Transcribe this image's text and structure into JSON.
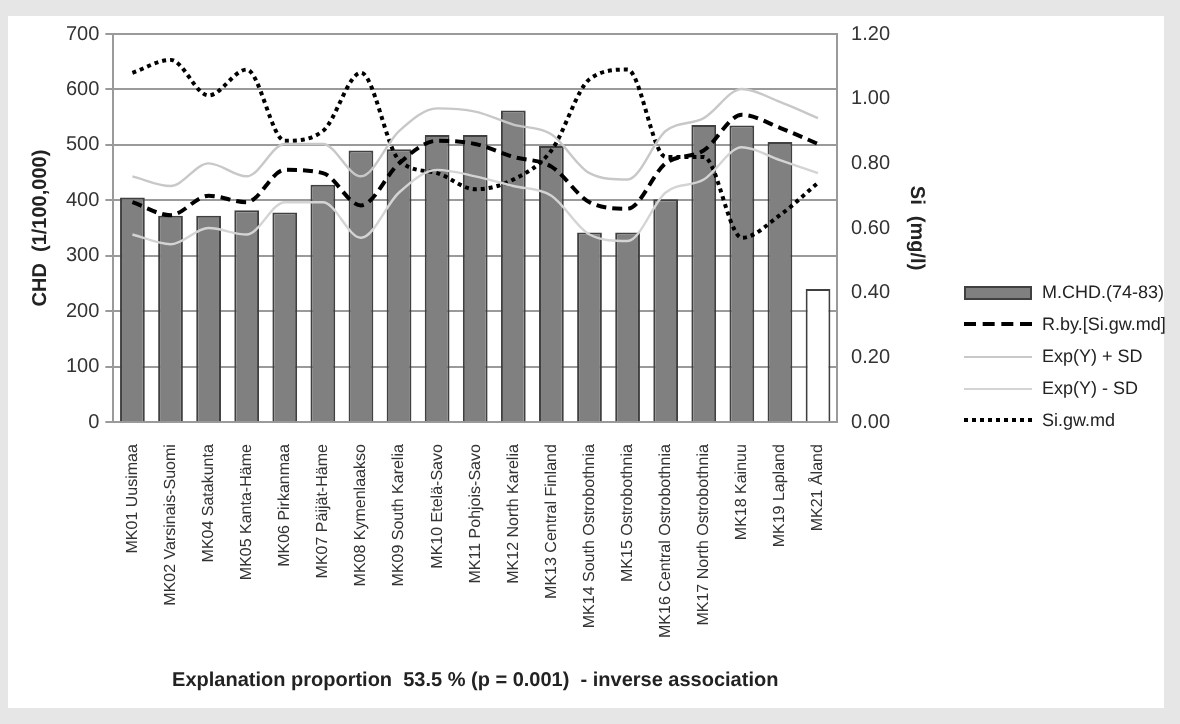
{
  "chart_data": {
    "type": "bar",
    "xlabel": "Explanation proportion  53.5 % (p = 0.001)  - inverse association",
    "ylabel": "CHD  (1/100,000)",
    "y2label": "Si  (mg/l)",
    "categories": [
      "MK01 Uusimaa",
      "MK02 Varsinais-Suomi",
      "MK04 Satakunta",
      "MK05 Kanta-Häme",
      "MK06 Pirkanmaa",
      "MK07 Päijät-Häme",
      "MK08 Kymenlaakso",
      "MK09 South Karelia",
      "MK10 Etelä-Savo",
      "MK11 Pohjois-Savo",
      "MK12 North Karelia",
      "MK13 Central Finland",
      "MK14 South Ostrobothnia",
      "MK15 Ostrobothnia",
      "MK16 Central Ostrobothnia",
      "MK17 North Ostrobothnia",
      "MK18 Kainuu",
      "MK19 Lapland",
      "MK21 Åland"
    ],
    "series": [
      {
        "name": "M.CHD.(74-83)",
        "color": "#808080",
        "colors": [
          "#808080",
          "#808080",
          "#808080",
          "#808080",
          "#808080",
          "#808080",
          "#808080",
          "#808080",
          "#808080",
          "#808080",
          "#808080",
          "#808080",
          "#808080",
          "#808080",
          "#808080",
          "#808080",
          "#808080",
          "#808080",
          "#ffffff"
        ],
        "values": [
          405,
          372,
          372,
          382,
          378,
          428,
          490,
          492,
          518,
          518,
          562,
          498,
          342,
          342,
          402,
          536,
          535,
          505,
          240
        ]
      },
      {
        "name": "R.by.[Si.gw.md]",
        "type": "line",
        "axis": "y2",
        "color": "#000000",
        "line_style": "dashed",
        "values": [
          0.68,
          0.64,
          0.7,
          0.68,
          0.78,
          0.77,
          0.67,
          0.8,
          0.87,
          0.86,
          0.82,
          0.79,
          0.68,
          0.66,
          0.8,
          0.84,
          0.95,
          0.91,
          0.86
        ]
      },
      {
        "name": "Exp(Y) + SD",
        "type": "line",
        "axis": "y2",
        "color": "#c8c8c8",
        "line_style": "solid",
        "values": [
          0.76,
          0.73,
          0.8,
          0.76,
          0.86,
          0.86,
          0.76,
          0.9,
          0.97,
          0.96,
          0.92,
          0.89,
          0.77,
          0.75,
          0.9,
          0.94,
          1.03,
          0.99,
          0.94
        ]
      },
      {
        "name": "Exp(Y) - SD",
        "type": "line",
        "axis": "y2",
        "color": "#d4d4d4",
        "line_style": "solid",
        "values": [
          0.58,
          0.55,
          0.6,
          0.58,
          0.68,
          0.68,
          0.57,
          0.71,
          0.78,
          0.76,
          0.73,
          0.7,
          0.58,
          0.56,
          0.71,
          0.75,
          0.85,
          0.81,
          0.77
        ]
      },
      {
        "name": "Si.gw.md",
        "type": "line",
        "axis": "y2",
        "color": "#000000",
        "line_style": "dotted",
        "values": [
          1.08,
          1.12,
          1.01,
          1.09,
          0.87,
          0.9,
          1.08,
          0.81,
          0.77,
          0.72,
          0.75,
          0.84,
          1.06,
          1.09,
          0.82,
          0.82,
          0.57,
          0.64,
          0.74
        ]
      }
    ],
    "ylim": [
      0,
      700
    ],
    "yticks": [
      0,
      100,
      200,
      300,
      400,
      500,
      600,
      700
    ],
    "y2lim": [
      0,
      1.2
    ],
    "y2ticks": [
      {
        "value": 0,
        "label": "0.00"
      },
      {
        "value": 0.2,
        "label": "0.20"
      },
      {
        "value": 0.4,
        "label": "0.40"
      },
      {
        "value": 0.6,
        "label": "0.60"
      },
      {
        "value": 0.8,
        "label": "0.80"
      },
      {
        "value": 1,
        "label": "1.00"
      },
      {
        "value": 1.2,
        "label": "1.20"
      }
    ],
    "grid": "y",
    "legend": "right",
    "marker": "none"
  }
}
